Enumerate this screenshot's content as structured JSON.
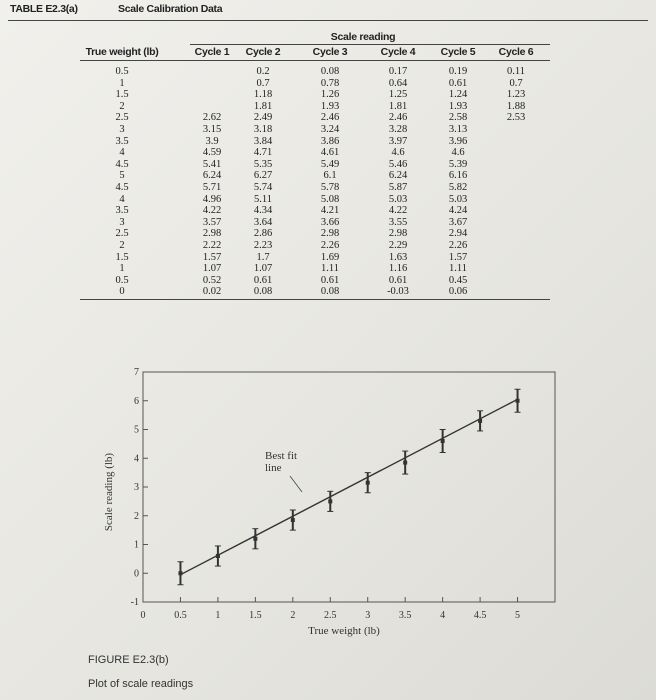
{
  "table": {
    "number": "TABLE E2.3(a)",
    "title": "Scale Calibration Data",
    "group_header": "Scale reading",
    "columns": [
      "True weight (lb)",
      "Cycle 1",
      "Cycle 2",
      "Cycle 3",
      "Cycle 4",
      "Cycle 5",
      "Cycle 6"
    ],
    "rows": [
      [
        "0.5",
        null,
        "0.2",
        "0.08",
        "0.17",
        "0.19",
        "0.11"
      ],
      [
        "1",
        null,
        "0.7",
        "0.78",
        "0.64",
        "0.61",
        "0.7"
      ],
      [
        "1.5",
        null,
        "1.18",
        "1.26",
        "1.25",
        "1.24",
        "1.23"
      ],
      [
        "2",
        null,
        "1.81",
        "1.93",
        "1.81",
        "1.93",
        "1.88"
      ],
      [
        "2.5",
        "2.62",
        "2.49",
        "2.46",
        "2.46",
        "2.58",
        "2.53"
      ],
      [
        "3",
        "3.15",
        "3.18",
        "3.24",
        "3.28",
        "3.13",
        null
      ],
      [
        "3.5",
        "3.9",
        "3.84",
        "3.86",
        "3.97",
        "3.96",
        null
      ],
      [
        "4",
        "4.59",
        "4.71",
        "4.61",
        "4.6",
        "4.6",
        null
      ],
      [
        "4.5",
        "5.41",
        "5.35",
        "5.49",
        "5.46",
        "5.39",
        null
      ],
      [
        "5",
        "6.24",
        "6.27",
        "6.1",
        "6.24",
        "6.16",
        null
      ],
      [
        "4.5",
        "5.71",
        "5.74",
        "5.78",
        "5.87",
        "5.82",
        null
      ],
      [
        "4",
        "4.96",
        "5.11",
        "5.08",
        "5.03",
        "5.03",
        null
      ],
      [
        "3.5",
        "4.22",
        "4.34",
        "4.21",
        "4.22",
        "4.24",
        null
      ],
      [
        "3",
        "3.57",
        "3.64",
        "3.66",
        "3.55",
        "3.67",
        null
      ],
      [
        "2.5",
        "2.98",
        "2.86",
        "2.98",
        "2.98",
        "2.94",
        null
      ],
      [
        "2",
        "2.22",
        "2.23",
        "2.26",
        "2.29",
        "2.26",
        null
      ],
      [
        "1.5",
        "1.57",
        "1.7",
        "1.69",
        "1.63",
        "1.57",
        null
      ],
      [
        "1",
        "1.07",
        "1.07",
        "1.11",
        "1.16",
        "1.11",
        null
      ],
      [
        "0.5",
        "0.52",
        "0.61",
        "0.61",
        "0.61",
        "0.45",
        null
      ],
      [
        "0",
        "0.02",
        "0.08",
        "0.08",
        "-0.03",
        "0.06",
        null
      ]
    ]
  },
  "chart_data": {
    "type": "errorbar",
    "xlabel": "True weight (lb)",
    "ylabel": "Scale reading (lb)",
    "annotation": "Best fit line",
    "x": [
      0.5,
      1,
      1.5,
      2,
      2.5,
      3,
      3.5,
      4,
      4.5,
      5
    ],
    "values": [
      0,
      0.6,
      1.2,
      1.85,
      2.5,
      3.15,
      3.85,
      4.6,
      5.3,
      6
    ],
    "errors": [
      0.4,
      0.35,
      0.35,
      0.35,
      0.35,
      0.35,
      0.4,
      0.4,
      0.35,
      0.4
    ],
    "fit_x": [
      0.5,
      5
    ],
    "fit_values": [
      -0.05,
      6.05
    ],
    "color": "#333333",
    "xlim": [
      0,
      5.5
    ],
    "ylim": [
      -1,
      7
    ],
    "xticks": [
      0,
      0.5,
      1,
      1.5,
      2,
      2.5,
      3,
      3.5,
      4,
      4.5,
      5
    ],
    "yticks": [
      -1,
      0,
      1,
      2,
      3,
      4,
      5,
      6,
      7
    ]
  },
  "figure": {
    "number": "FIGURE E2.3(b)",
    "caption": "Plot of scale readings"
  }
}
